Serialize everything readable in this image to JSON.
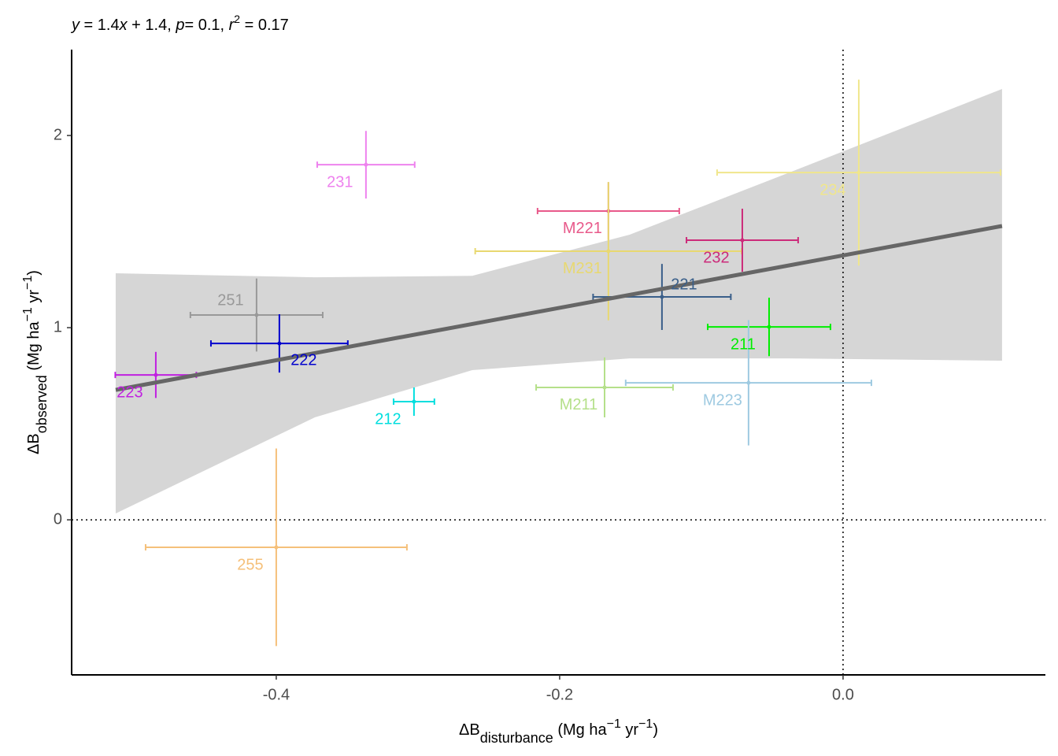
{
  "chart_data": {
    "type": "scatter",
    "title_parts": [
      "y",
      " = 1.4",
      "x",
      " + 1.4,  ",
      "p",
      "= 0.1,  ",
      "r",
      "2",
      " = 0.17"
    ],
    "x_label": [
      "ΔB",
      "disturbance",
      " (Mg ha",
      "−1",
      " yr",
      "−1",
      ")"
    ],
    "y_label": [
      "ΔB",
      "observed",
      " (Mg ha",
      "−1",
      " yr",
      "−1",
      ")"
    ],
    "xlim": [
      -0.5444,
      0.1428
    ],
    "ylim": [
      -0.807,
      2.447
    ],
    "xticks": [
      -0.4,
      -0.2,
      {
        "value": 0,
        "label": "0.0"
      }
    ],
    "yticks": [
      0,
      1,
      2
    ],
    "ref_x": 0,
    "ref_y": 0,
    "fit": {
      "color": "#666666",
      "x": [
        -0.5133,
        0.1122
      ],
      "y": [
        0.676,
        1.529
      ]
    },
    "band": {
      "color": "#d6d6d6",
      "x": [
        -0.5133,
        -0.3728,
        -0.2617,
        -0.1506,
        -0.0394,
        0.1122
      ],
      "upper": [
        1.283,
        1.262,
        1.27,
        1.484,
        1.803,
        2.242
      ],
      "lower": [
        0.033,
        0.533,
        0.779,
        0.84,
        0.84,
        0.828
      ]
    },
    "points": [
      {
        "name": "231",
        "color": "#ee82ee",
        "x": -0.3367,
        "y": 1.848,
        "xerr": 0.0344,
        "yerr": 0.176
      },
      {
        "name": "M221",
        "color": "#e8598a",
        "x": -0.1656,
        "y": 1.607,
        "xerr": 0.05,
        "yerr": 0.15
      },
      {
        "name": "M231",
        "color": "#e8d870",
        "x": -0.1656,
        "y": 1.398,
        "xerr": 0.094,
        "yerr": 0.36
      },
      {
        "name": "234",
        "color": "#f0e68c",
        "x": 0.0111,
        "y": 1.807,
        "xerr": 0.1,
        "yerr": 0.484
      },
      {
        "name": "232",
        "color": "#cc2b7a",
        "x": -0.0711,
        "y": 1.455,
        "xerr": 0.0394,
        "yerr": 0.164
      },
      {
        "name": "221",
        "color": "#3a5f8a",
        "x": -0.1278,
        "y": 1.16,
        "xerr": 0.0486,
        "yerr": 0.172
      },
      {
        "name": "211",
        "color": "#00ee00",
        "x": -0.0522,
        "y": 1.004,
        "xerr": 0.0433,
        "yerr": 0.152
      },
      {
        "name": "M223",
        "color": "#9ecae1",
        "x": -0.0667,
        "y": 0.713,
        "xerr": 0.0867,
        "yerr": 0.326
      },
      {
        "name": "M211",
        "color": "#b5e08a",
        "x": -0.1683,
        "y": 0.689,
        "xerr": 0.0483,
        "yerr": 0.156
      },
      {
        "name": "251",
        "color": "#999999",
        "x": -0.4139,
        "y": 1.066,
        "xerr": 0.0467,
        "yerr": 0.19
      },
      {
        "name": "222",
        "color": "#0000cd",
        "x": -0.3978,
        "y": 0.918,
        "xerr": 0.0483,
        "yerr": 0.152
      },
      {
        "name": "223",
        "color": "#c020e0",
        "x": -0.485,
        "y": 0.754,
        "xerr": 0.0286,
        "yerr": 0.12
      },
      {
        "name": "212",
        "color": "#00dede",
        "x": -0.3028,
        "y": 0.615,
        "xerr": 0.0144,
        "yerr": 0.074
      },
      {
        "name": "255",
        "color": "#f5c07a",
        "x": -0.4,
        "y": -0.143,
        "xerr": 0.0922,
        "yerr": 0.514
      }
    ]
  }
}
